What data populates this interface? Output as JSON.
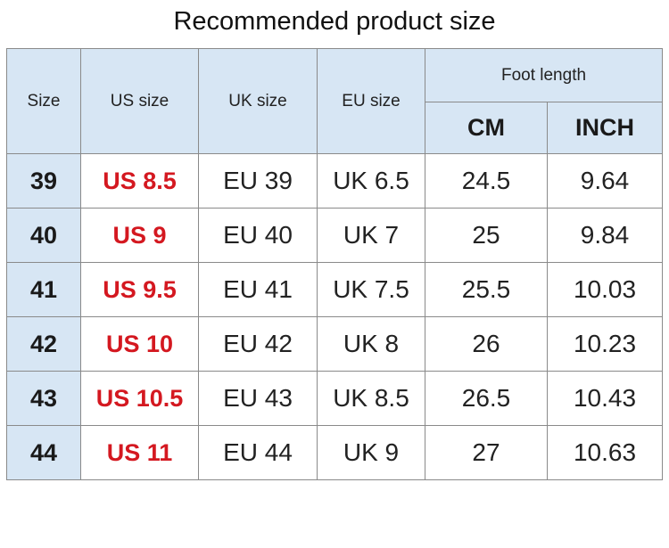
{
  "title": "Recommended product size",
  "headers": {
    "size": "Size",
    "us": "US size",
    "uk": "UK size",
    "eu": "EU size",
    "foot_length": "Foot length",
    "cm": "CM",
    "inch": "INCH"
  },
  "rows": [
    {
      "size": "39",
      "us": "US 8.5",
      "col3": "EU 39",
      "col4": "UK 6.5",
      "cm": "24.5",
      "inch": "9.64"
    },
    {
      "size": "40",
      "us": "US 9",
      "col3": "EU 40",
      "col4": "UK 7",
      "cm": "25",
      "inch": "9.84"
    },
    {
      "size": "41",
      "us": "US 9.5",
      "col3": "EU 41",
      "col4": "UK 7.5",
      "cm": "25.5",
      "inch": "10.03"
    },
    {
      "size": "42",
      "us": "US 10",
      "col3": "EU 42",
      "col4": "UK 8",
      "cm": "26",
      "inch": "10.23"
    },
    {
      "size": "43",
      "us": "US 10.5",
      "col3": "EU 43",
      "col4": "UK 8.5",
      "cm": "26.5",
      "inch": "10.43"
    },
    {
      "size": "44",
      "us": "US 11",
      "col3": "EU 44",
      "col4": "UK 9",
      "cm": "27",
      "inch": "10.63"
    }
  ],
  "colors": {
    "header_bg": "#d7e6f4",
    "us_text": "#d41820",
    "border": "#8a8a8a"
  }
}
